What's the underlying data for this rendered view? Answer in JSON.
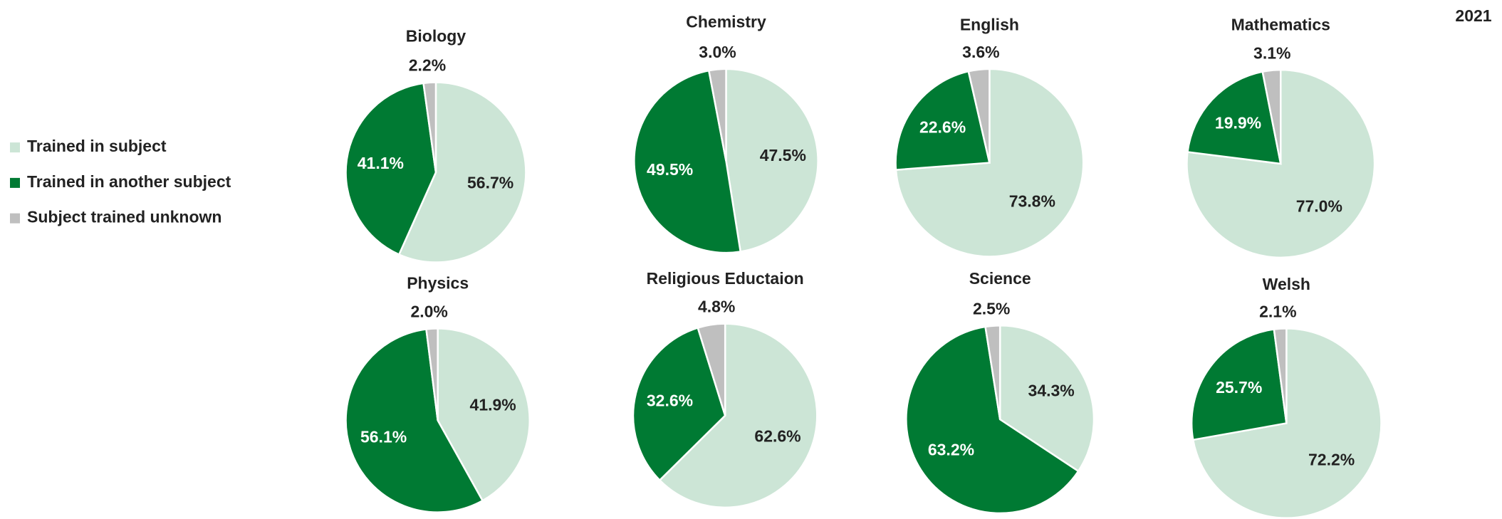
{
  "annotation": "2021",
  "legend": {
    "labels": [
      "Trained in subject",
      "Trained in another subject",
      "Subject trained unknown"
    ],
    "colors": [
      "#cce5d6",
      "#007a33",
      "#bfbfbf"
    ]
  },
  "chart_data": [
    {
      "type": "pie",
      "title": "Biology",
      "values": [
        56.7,
        41.1,
        2.2
      ],
      "value_labels": [
        "56.7%",
        "41.1%",
        "2.2%"
      ]
    },
    {
      "type": "pie",
      "title": "Chemistry",
      "values": [
        47.5,
        49.5,
        3.0
      ],
      "value_labels": [
        "47.5%",
        "49.5%",
        "3.0%"
      ]
    },
    {
      "type": "pie",
      "title": "English",
      "values": [
        73.8,
        22.6,
        3.6
      ],
      "value_labels": [
        "73.8%",
        "22.6%",
        "3.6%"
      ]
    },
    {
      "type": "pie",
      "title": "Mathematics",
      "values": [
        77.0,
        19.9,
        3.1
      ],
      "value_labels": [
        "77.0%",
        "19.9%",
        "3.1%"
      ]
    },
    {
      "type": "pie",
      "title": "Physics",
      "values": [
        41.9,
        56.1,
        2.0
      ],
      "value_labels": [
        "41.9%",
        "56.1%",
        "2.0%"
      ]
    },
    {
      "type": "pie",
      "title": "Religious Eductaion",
      "values": [
        62.6,
        32.6,
        4.8
      ],
      "value_labels": [
        "62.6%",
        "32.6%",
        "4.8%"
      ]
    },
    {
      "type": "pie",
      "title": "Science",
      "values": [
        34.3,
        63.2,
        2.5
      ],
      "value_labels": [
        "34.3%",
        "63.2%",
        "2.5%"
      ]
    },
    {
      "type": "pie",
      "title": "Welsh",
      "values": [
        72.2,
        25.7,
        2.1
      ],
      "value_labels": [
        "72.2%",
        "25.7%",
        "2.1%"
      ]
    }
  ]
}
